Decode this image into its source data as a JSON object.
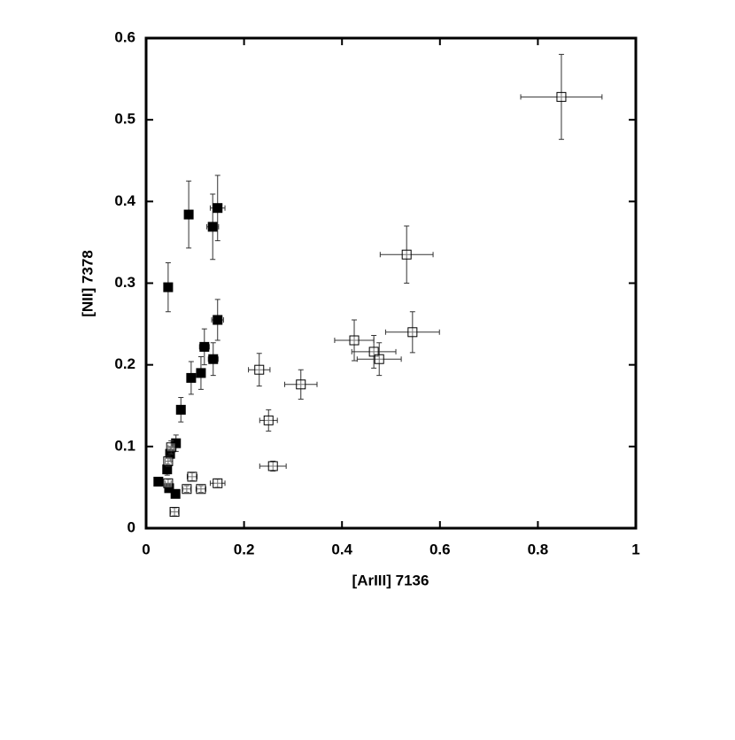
{
  "chart_data": {
    "type": "scatter",
    "x_label": "[ArIII] 7136",
    "y_label": "[NII] 7378",
    "xlim": [
      0,
      1
    ],
    "ylim": [
      0,
      0.6
    ],
    "xticks": [
      0,
      0.2,
      0.4,
      0.6,
      0.8,
      1
    ],
    "yticks": [
      0,
      0.1,
      0.2,
      0.3,
      0.4,
      0.5,
      0.6
    ],
    "series": [
      {
        "color": "#000000",
        "marker_fill": "#000000",
        "x": [
          0.087,
          0.136,
          0.146,
          0.045,
          0.146,
          0.119,
          0.137,
          0.112,
          0.092,
          0.071,
          0.061,
          0.049,
          0.043,
          0.025,
          0.06,
          0.047
        ],
        "values": [
          0.384,
          0.369,
          0.392,
          0.295,
          0.255,
          0.222,
          0.207,
          0.19,
          0.184,
          0.145,
          0.104,
          0.091,
          0.072,
          0.057,
          0.042,
          0.049
        ],
        "xerr": [
          0.006,
          0.012,
          0.015,
          0.005,
          0.012,
          0.01,
          0.01,
          0.008,
          0.008,
          0.006,
          0.006,
          0.005,
          0.005,
          0.004,
          0.005,
          0.005
        ],
        "yerr": [
          0.041,
          0.04,
          0.04,
          0.03,
          0.025,
          0.022,
          0.02,
          0.02,
          0.02,
          0.015,
          0.01,
          0.009,
          0.007,
          0.005,
          0.004,
          0.005
        ]
      },
      {
        "color": "#000000",
        "marker_fill": "#ffffff",
        "x": [
          0.848,
          0.532,
          0.544,
          0.425,
          0.465,
          0.476,
          0.231,
          0.316,
          0.25,
          0.259,
          0.146,
          0.094,
          0.112,
          0.083,
          0.058,
          0.051,
          0.045,
          0.045
        ],
        "values": [
          0.528,
          0.335,
          0.24,
          0.23,
          0.216,
          0.207,
          0.194,
          0.176,
          0.132,
          0.076,
          0.055,
          0.063,
          0.048,
          0.048,
          0.02,
          0.099,
          0.055,
          0.082
        ],
        "xerr": [
          0.083,
          0.054,
          0.055,
          0.04,
          0.045,
          0.045,
          0.022,
          0.033,
          0.018,
          0.027,
          0.015,
          0.01,
          0.01,
          0.008,
          0.008,
          0.006,
          0.006,
          0.006
        ],
        "yerr": [
          0.052,
          0.035,
          0.025,
          0.025,
          0.02,
          0.02,
          0.02,
          0.018,
          0.013,
          0.006,
          0.005,
          0.005,
          0.004,
          0.004,
          0.005,
          0.008,
          0.005,
          0.006
        ]
      }
    ]
  }
}
